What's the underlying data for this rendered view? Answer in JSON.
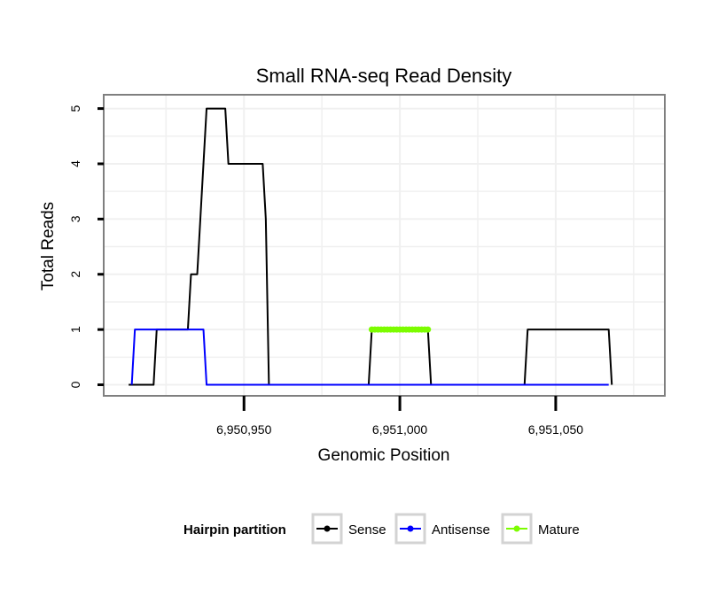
{
  "chart_data": {
    "type": "line",
    "title": "Small RNA-seq Read Density",
    "xlabel": "Genomic Position",
    "ylabel": "Total Reads",
    "xlim": [
      6950905,
      6951085
    ],
    "ylim": [
      -0.2,
      5.25
    ],
    "x_ticks": [
      6950950,
      6951000,
      6951050
    ],
    "x_tick_labels": [
      "6,950,950",
      "6,951,000",
      "6,951,050"
    ],
    "y_ticks": [
      0,
      1,
      2,
      3,
      4,
      5
    ],
    "y_tick_labels": [
      "0",
      "1",
      "2",
      "3",
      "4",
      "5"
    ],
    "grid": true,
    "legend": {
      "title": "Hairpin partition",
      "position": "bottom",
      "entries": [
        "Sense",
        "Antisense",
        "Mature"
      ]
    },
    "series": [
      {
        "name": "Sense",
        "color": "#000000",
        "markers": false,
        "points": [
          [
            6950913,
            0
          ],
          [
            6950921,
            0
          ],
          [
            6950922,
            1
          ],
          [
            6950932,
            1
          ],
          [
            6950933,
            2
          ],
          [
            6950935,
            2
          ],
          [
            6950936,
            3
          ],
          [
            6950937,
            4
          ],
          [
            6950938,
            5
          ],
          [
            6950944,
            5
          ],
          [
            6950945,
            4
          ],
          [
            6950956,
            4
          ],
          [
            6950957,
            3
          ],
          [
            6950958,
            0
          ],
          [
            6950990,
            0
          ],
          [
            6950991,
            1
          ],
          [
            6951009,
            1
          ],
          [
            6951010,
            0
          ],
          [
            6951040,
            0
          ],
          [
            6951041,
            1
          ],
          [
            6951067,
            1
          ],
          [
            6951068,
            0
          ]
        ]
      },
      {
        "name": "Antisense",
        "color": "#0000ff",
        "markers": false,
        "points": [
          [
            6950914,
            0
          ],
          [
            6950915,
            1
          ],
          [
            6950937,
            1
          ],
          [
            6950938,
            0
          ],
          [
            6951067,
            0
          ]
        ]
      },
      {
        "name": "Mature",
        "color": "#7cfc00",
        "markers": true,
        "points": [
          [
            6950991,
            1
          ],
          [
            6950992,
            1
          ],
          [
            6950993,
            1
          ],
          [
            6950994,
            1
          ],
          [
            6950995,
            1
          ],
          [
            6950996,
            1
          ],
          [
            6950997,
            1
          ],
          [
            6950998,
            1
          ],
          [
            6950999,
            1
          ],
          [
            6951000,
            1
          ],
          [
            6951001,
            1
          ],
          [
            6951002,
            1
          ],
          [
            6951003,
            1
          ],
          [
            6951004,
            1
          ],
          [
            6951005,
            1
          ],
          [
            6951006,
            1
          ],
          [
            6951007,
            1
          ],
          [
            6951008,
            1
          ],
          [
            6951009,
            1
          ]
        ]
      }
    ]
  }
}
